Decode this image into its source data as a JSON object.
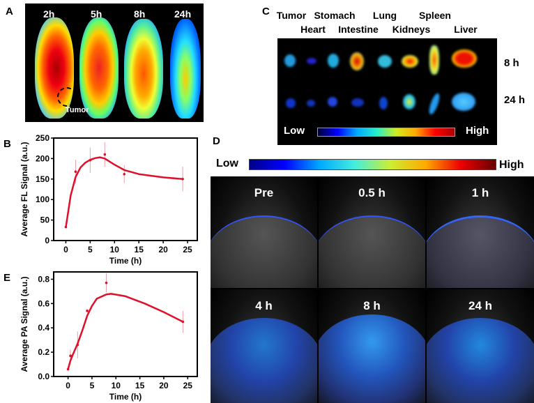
{
  "panels": {
    "a": "A",
    "b": "B",
    "c": "C",
    "d": "D",
    "e": "E"
  },
  "panel_a": {
    "times": [
      "2h",
      "5h",
      "8h",
      "24h"
    ],
    "tumor_label": "Tumor"
  },
  "panel_c": {
    "organs": [
      "Tumor",
      "Heart",
      "Stomach",
      "Intestine",
      "Lung",
      "Kidneys",
      "Spleen",
      "Liver"
    ],
    "rows": [
      "8 h",
      "24 h"
    ],
    "scale_low": "Low",
    "scale_high": "High"
  },
  "panel_d": {
    "scale_low": "Low",
    "scale_high": "High",
    "frames": [
      "Pre",
      "0.5 h",
      "1 h",
      "4 h",
      "8 h",
      "24 h"
    ]
  },
  "colors": {
    "curve": "#e0102a",
    "error": "#e8a0a8"
  },
  "chart_data": [
    {
      "type": "line",
      "panel": "B",
      "xlabel": "Time (h)",
      "ylabel": "Average FL Signal (a.u.)",
      "xlim": [
        -2.5,
        27
      ],
      "ylim": [
        0,
        250
      ],
      "xticks": [
        0,
        5,
        10,
        15,
        20,
        25
      ],
      "yticks": [
        0,
        50,
        100,
        150,
        200,
        250
      ],
      "points": {
        "x": [
          0,
          2,
          5,
          8,
          12,
          24
        ],
        "y": [
          33,
          168,
          196,
          210,
          162,
          150
        ],
        "err": [
          0,
          29,
          31,
          30,
          22,
          30
        ]
      },
      "fit": {
        "x": [
          0,
          1,
          2,
          3,
          4,
          5,
          6,
          7,
          8,
          10,
          12,
          15,
          20,
          24
        ],
        "y": [
          33,
          110,
          155,
          178,
          190,
          197,
          201,
          203,
          200,
          185,
          172,
          162,
          154,
          150
        ]
      }
    },
    {
      "type": "line",
      "panel": "E",
      "xlabel": "Time (h)",
      "ylabel": "Average PA Signal (a.u.)",
      "xlim": [
        -3,
        27
      ],
      "ylim": [
        0,
        0.86
      ],
      "xticks": [
        0,
        5,
        10,
        15,
        20,
        25
      ],
      "yticks": [
        0.0,
        0.2,
        0.4,
        0.6,
        0.8
      ],
      "points": {
        "x": [
          0,
          0.5,
          2,
          4,
          8,
          24
        ],
        "y": [
          0.06,
          0.17,
          0.26,
          0.54,
          0.77,
          0.45
        ],
        "err": [
          0,
          0.05,
          0.11,
          0.01,
          0.08,
          0.09
        ]
      },
      "fit": {
        "x": [
          0,
          0.5,
          1,
          2,
          3,
          4,
          5,
          6,
          8,
          9,
          12,
          16,
          20,
          24
        ],
        "y": [
          0.06,
          0.13,
          0.18,
          0.27,
          0.38,
          0.5,
          0.58,
          0.64,
          0.675,
          0.68,
          0.66,
          0.6,
          0.53,
          0.45
        ]
      }
    }
  ]
}
